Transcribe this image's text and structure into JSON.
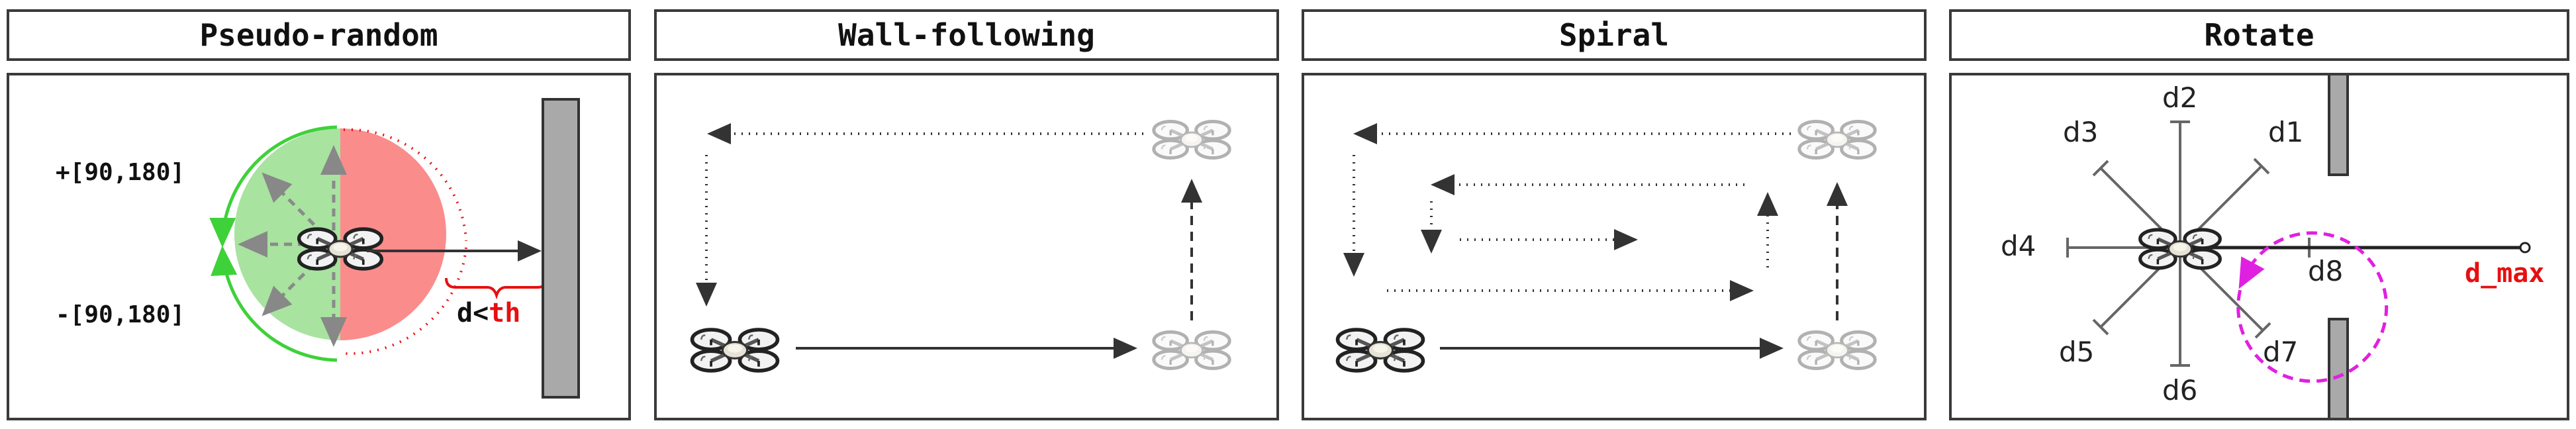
{
  "panels": [
    {
      "title": "Pseudo-random"
    },
    {
      "title": "Wall-following"
    },
    {
      "title": "Spiral"
    },
    {
      "title": "Rotate"
    }
  ],
  "pseudo_random": {
    "angle_pos_label": "+[90,180]",
    "angle_neg_label": "-[90,180]",
    "distance_prefix": "d<",
    "distance_threshold": "th"
  },
  "rotate": {
    "sensors": [
      "d1",
      "d2",
      "d3",
      "d4",
      "d5",
      "d6",
      "d7",
      "d8"
    ],
    "max_range_label": "d_max"
  },
  "colors": {
    "green_zone": "#a8e3a0",
    "red_zone": "#fb8c8c",
    "green_arrow": "#3fd13a",
    "red_accent": "#e61010",
    "magenta": "#e020e0",
    "wall": "#a9a9a9"
  },
  "icons": [
    "drone-icon",
    "wall-icon"
  ]
}
